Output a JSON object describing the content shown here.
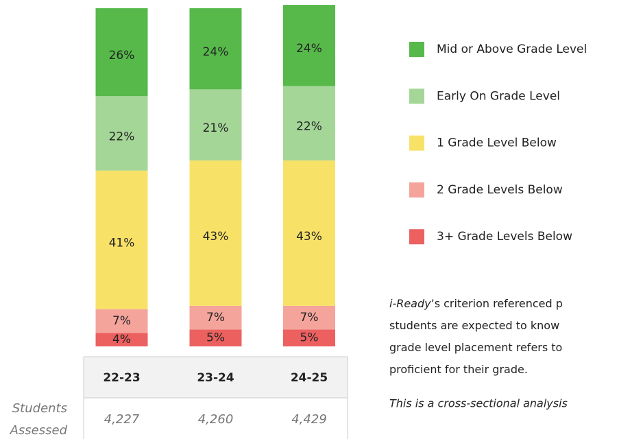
{
  "chart_data": {
    "type": "bar",
    "stacked": true,
    "categories": [
      "22-23",
      "23-24",
      "24-25"
    ],
    "series": [
      {
        "name": "Mid or Above Grade Level",
        "color": "#56b94a",
        "values": [
          26,
          24,
          24
        ],
        "value_labels": [
          "26%",
          "24%",
          "24%"
        ]
      },
      {
        "name": "Early On Grade Level",
        "color": "#a4d697",
        "values": [
          22,
          21,
          22
        ],
        "value_labels": [
          "22%",
          "21%",
          "22%"
        ]
      },
      {
        "name": "1 Grade Level Below",
        "color": "#f8e167",
        "values": [
          41,
          43,
          43
        ],
        "value_labels": [
          "41%",
          "43%",
          "43%"
        ]
      },
      {
        "name": "2 Grade Levels Below",
        "color": "#f4a49b",
        "values": [
          7,
          7,
          7
        ],
        "value_labels": [
          "7%",
          "7%",
          "7%"
        ]
      },
      {
        "name": "3+ Grade Levels Below",
        "color": "#ec6060",
        "values": [
          4,
          5,
          5
        ],
        "value_labels": [
          "4%",
          "5%",
          "5%"
        ]
      }
    ],
    "table": {
      "row_label": [
        "Students",
        "Assessed"
      ],
      "values": [
        "4,227",
        "4,260",
        "4,429"
      ]
    },
    "note": {
      "lines": [
        [
          "i-Ready",
          "’s criterion referenced p"
        ],
        [
          "students are expected to know"
        ],
        [
          "grade level placement refers to"
        ],
        [
          "proficient for their grade."
        ]
      ],
      "footnote": "This is a cross-sectional analysis"
    }
  }
}
